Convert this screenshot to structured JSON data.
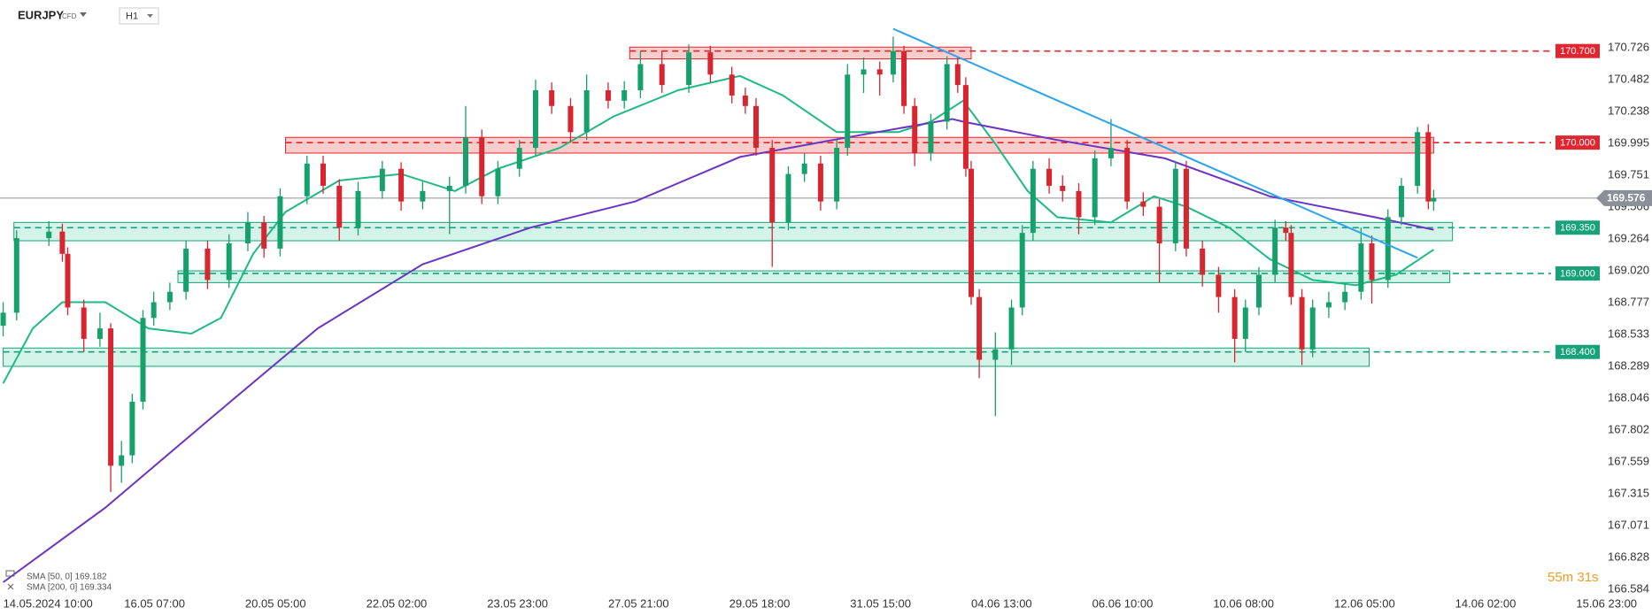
{
  "header": {
    "symbol": "EURJPY",
    "instrument_type": "CFD",
    "interval": "H1"
  },
  "legend": [
    "SMA [50, 0] 169.182",
    "SMA [200, 0] 169.334"
  ],
  "countdown": "55m 31s",
  "chart_data": {
    "type": "candlestick",
    "up_color": "#16a06b",
    "down_color": "#d7262f",
    "x": [
      0,
      5,
      17,
      22,
      24,
      30,
      36,
      40,
      44,
      48,
      52,
      56,
      62,
      68,
      76,
      84,
      91,
      97,
      103,
      113,
      119,
      125,
      132,
      141,
      148,
      156,
      166,
      172,
      178,
      184,
      192,
      198,
      204,
      211,
      217,
      225,
      231,
      237,
      245,
      255,
      263,
      271,
      276,
      280,
      286,
      292,
      298,
      304,
      310,
      314,
      320,
      326,
      331,
      335,
      339,
      345,
      351,
      355,
      358,
      360,
      363,
      369,
      375,
      379,
      383,
      389,
      394,
      400,
      406,
      412,
      418,
      424,
      430,
      436,
      440,
      446,
      452,
      458,
      462,
      467,
      473,
      477,
      479,
      483,
      487,
      493,
      499,
      505,
      509,
      515,
      520,
      526,
      530,
      532
    ],
    "open": [
      168.6,
      168.7,
      169.27,
      169.32,
      169.15,
      168.74,
      168.5,
      168.58,
      167.53,
      167.61,
      168.02,
      168.66,
      168.78,
      168.86,
      169.19,
      168.95,
      169.23,
      169.39,
      169.19,
      169.59,
      169.84,
      169.67,
      169.35,
      169.63,
      169.8,
      169.55,
      169.63,
      169.67,
      170.04,
      169.59,
      169.8,
      169.96,
      170.4,
      170.28,
      170.08,
      170.4,
      170.32,
      170.4,
      170.6,
      170.44,
      170.69,
      170.52,
      170.36,
      170.28,
      169.96,
      169.39,
      169.76,
      169.84,
      169.55,
      169.96,
      170.52,
      170.56,
      170.52,
      170.7,
      170.28,
      169.92,
      170.16,
      170.6,
      170.44,
      169.8,
      168.82,
      168.34,
      168.42,
      168.74,
      169.31,
      169.8,
      169.67,
      169.63,
      169.43,
      169.88,
      169.96,
      169.55,
      169.51,
      169.23,
      169.8,
      169.19,
      168.99,
      168.82,
      168.5,
      168.74,
      168.99,
      169.35,
      169.31,
      168.82,
      168.42,
      168.74,
      168.78,
      168.86,
      169.23,
      168.95,
      169.43,
      169.67,
      170.08,
      169.55
    ],
    "high": [
      168.78,
      169.33,
      169.4,
      169.38,
      169.2,
      168.8,
      168.7,
      168.62,
      167.72,
      168.08,
      168.72,
      168.86,
      168.93,
      169.25,
      169.25,
      169.3,
      169.47,
      169.44,
      169.65,
      169.9,
      169.9,
      169.72,
      169.7,
      169.86,
      169.85,
      169.7,
      169.74,
      170.28,
      170.1,
      169.86,
      170.02,
      170.48,
      170.46,
      170.34,
      170.52,
      170.46,
      170.47,
      170.7,
      170.7,
      170.75,
      170.74,
      170.58,
      170.42,
      170.34,
      170.02,
      169.82,
      169.92,
      169.9,
      170.02,
      170.6,
      170.65,
      170.62,
      170.81,
      170.74,
      170.34,
      170.22,
      170.66,
      170.66,
      170.5,
      169.86,
      168.88,
      168.55,
      168.8,
      169.37,
      169.86,
      169.88,
      169.75,
      169.69,
      169.94,
      170.18,
      170.02,
      169.62,
      169.57,
      169.86,
      169.86,
      169.25,
      169.05,
      168.88,
      168.8,
      169.05,
      169.41,
      169.4,
      169.37,
      168.88,
      168.8,
      168.86,
      168.92,
      169.35,
      169.29,
      169.49,
      169.73,
      170.12,
      170.14,
      169.64
    ],
    "low": [
      168.52,
      168.64,
      169.21,
      169.09,
      168.68,
      168.4,
      168.44,
      167.33,
      167.4,
      167.55,
      167.96,
      168.6,
      168.72,
      168.8,
      168.88,
      168.89,
      169.17,
      169.12,
      169.13,
      169.53,
      169.61,
      169.25,
      169.29,
      169.57,
      169.48,
      169.49,
      169.3,
      169.61,
      169.53,
      169.53,
      169.74,
      169.9,
      170.22,
      170.0,
      170.02,
      170.26,
      170.26,
      170.34,
      170.38,
      170.38,
      170.46,
      170.3,
      170.22,
      169.9,
      169.05,
      169.33,
      169.7,
      169.48,
      169.49,
      169.9,
      170.38,
      170.36,
      170.46,
      170.22,
      169.82,
      169.86,
      170.1,
      170.38,
      169.74,
      168.76,
      168.2,
      167.91,
      168.3,
      168.68,
      169.25,
      169.61,
      169.55,
      169.3,
      169.37,
      169.82,
      169.49,
      169.44,
      168.93,
      169.17,
      169.13,
      168.9,
      168.7,
      168.32,
      168.4,
      168.68,
      168.93,
      169.25,
      168.76,
      168.3,
      168.36,
      168.66,
      168.72,
      168.8,
      168.77,
      168.89,
      169.37,
      169.61,
      169.49,
      169.48
    ],
    "close": [
      168.7,
      169.27,
      169.32,
      169.15,
      168.74,
      168.5,
      168.58,
      167.53,
      167.61,
      168.02,
      168.66,
      168.78,
      168.86,
      169.19,
      168.95,
      169.23,
      169.39,
      169.19,
      169.59,
      169.84,
      169.67,
      169.35,
      169.63,
      169.8,
      169.55,
      169.63,
      169.67,
      170.04,
      169.59,
      169.8,
      169.96,
      170.4,
      170.28,
      170.08,
      170.4,
      170.32,
      170.4,
      170.6,
      170.44,
      170.69,
      170.52,
      170.36,
      170.28,
      169.96,
      169.39,
      169.76,
      169.84,
      169.55,
      169.96,
      170.52,
      170.56,
      170.52,
      170.7,
      170.28,
      169.92,
      170.16,
      170.6,
      170.44,
      169.8,
      168.82,
      168.34,
      168.42,
      168.74,
      169.31,
      169.8,
      169.67,
      169.63,
      169.43,
      169.88,
      169.96,
      169.55,
      169.51,
      169.23,
      169.8,
      169.19,
      168.99,
      168.82,
      168.5,
      168.74,
      168.99,
      169.35,
      169.31,
      168.82,
      168.42,
      168.74,
      168.78,
      168.86,
      169.23,
      168.95,
      169.43,
      169.67,
      170.08,
      169.55,
      169.576
    ],
    "overlays": [
      {
        "name": "SMA [50, 0] 169.182",
        "color": "#1dba84",
        "x": [
          0,
          11,
          22,
          38,
          54,
          70,
          81,
          93,
          105,
          125,
          148,
          168,
          184,
          207,
          227,
          251,
          274,
          290,
          310,
          333,
          345,
          357,
          369,
          381,
          392,
          412,
          428,
          440,
          456,
          471,
          487,
          503,
          518,
          532
        ],
        "values": [
          168.16,
          168.58,
          168.78,
          168.78,
          168.58,
          168.54,
          168.66,
          169.15,
          169.47,
          169.71,
          169.76,
          169.63,
          169.8,
          169.96,
          170.2,
          170.4,
          170.51,
          170.36,
          170.08,
          170.08,
          170.16,
          170.32,
          169.99,
          169.63,
          169.43,
          169.39,
          169.59,
          169.51,
          169.35,
          169.11,
          168.95,
          168.91,
          168.99,
          169.182
        ]
      },
      {
        "name": "SMA [200, 0] 169.334",
        "color": "#6a35c5",
        "x": [
          0,
          38,
          77,
          117,
          156,
          196,
          235,
          274,
          314,
          353,
          357,
          392,
          432,
          471,
          510,
          532
        ],
        "values": [
          166.64,
          167.21,
          167.89,
          168.58,
          169.07,
          169.35,
          169.55,
          169.89,
          170.04,
          170.18,
          170.16,
          170.02,
          169.88,
          169.59,
          169.43,
          169.334
        ]
      }
    ],
    "trendline": {
      "color": "#2aa4ee",
      "x": [
        331,
        526
      ],
      "y": [
        170.87,
        169.12
      ]
    },
    "levels": [
      {
        "level": {
          "value": 170.7,
          "label": "170.700"
        },
        "color": "#e0262f",
        "xrange": [
          233,
          360
        ],
        "yrange": [
          170.64,
          170.73
        ]
      },
      {
        "level": {
          "value": 170,
          "label": "170.000"
        },
        "color": "#e0262f",
        "xrange": [
          105,
          532
        ],
        "yrange": [
          169.92,
          170.04
        ]
      },
      {
        "level": {
          "value": 169.35,
          "label": "169.350"
        },
        "color": "#16a37a",
        "xrange": [
          4,
          539
        ],
        "yrange": [
          169.25,
          169.39
        ]
      },
      {
        "level": {
          "value": 169,
          "label": "169.000"
        },
        "color": "#16a37a",
        "xrange": [
          65,
          538
        ],
        "yrange": [
          168.93,
          169.02
        ]
      },
      {
        "level": {
          "value": 168.4,
          "label": "168.400"
        },
        "color": "#16a37a",
        "xrange": [
          0,
          508
        ],
        "yrange": [
          168.29,
          168.43
        ]
      }
    ],
    "current_price": 169.576,
    "xlim": [
      -1.18,
      594.1
    ],
    "xticks": [
      {
        "value": 0,
        "label": "14.05.2024 10:00"
      },
      {
        "value": 45,
        "label": "16.05 07:00"
      },
      {
        "value": 90,
        "label": "20.05 05:00"
      },
      {
        "value": 135,
        "label": "22.05 02:00"
      },
      {
        "value": 180,
        "label": "23.05 23:00"
      },
      {
        "value": 225,
        "label": "27.05 21:00"
      },
      {
        "value": 270,
        "label": "29.05 18:00"
      },
      {
        "value": 315,
        "label": "31.05 15:00"
      },
      {
        "value": 360,
        "label": "04.06 13:00"
      },
      {
        "value": 405,
        "label": "06.06 10:00"
      },
      {
        "value": 450,
        "label": "10.06 08:00"
      },
      {
        "value": 495,
        "label": "12.06 05:00"
      },
      {
        "value": 540,
        "label": "14.06 02:00"
      },
      {
        "value": 585,
        "label": "15.06 23:00"
      }
    ],
    "ylim": [
      166.518,
      171.09
    ],
    "yticks": [
      170.726,
      170.482,
      170.238,
      169.995,
      169.751,
      169.506,
      169.264,
      {
        "value": 169.02,
        "label": "169.020"
      },
      168.777,
      168.533,
      168.289,
      168.046,
      167.802,
      167.559,
      167.315,
      167.071,
      166.828,
      166.584
    ],
    "grid": false
  }
}
